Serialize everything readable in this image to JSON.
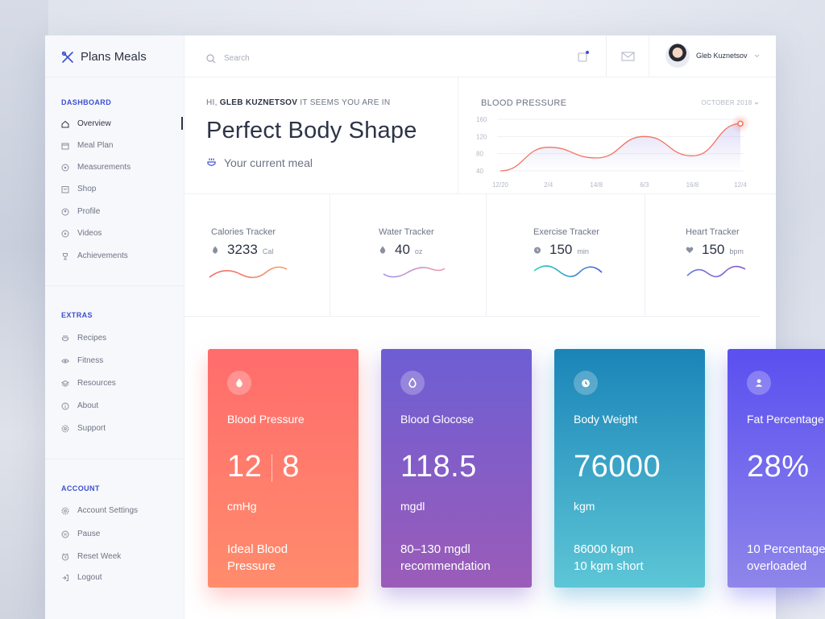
{
  "brand": {
    "name": "Plans Meals"
  },
  "sidebar": {
    "dashboard_title": "DASHBOARD",
    "dashboard_items": [
      {
        "label": "Overview",
        "icon": "home-icon"
      },
      {
        "label": "Meal Plan",
        "icon": "calendar-icon"
      },
      {
        "label": "Measurements",
        "icon": "target-icon"
      },
      {
        "label": "Shop",
        "icon": "shop-icon"
      },
      {
        "label": "Profile",
        "icon": "user-icon"
      },
      {
        "label": "Videos",
        "icon": "play-icon"
      },
      {
        "label": "Achievements",
        "icon": "trophy-icon"
      }
    ],
    "extras_title": "EXTRAS",
    "extras_items": [
      {
        "label": "Recipes",
        "icon": "cup-icon"
      },
      {
        "label": "Fitness",
        "icon": "eye-icon"
      },
      {
        "label": "Resources",
        "icon": "layers-icon"
      },
      {
        "label": "About",
        "icon": "info-icon"
      },
      {
        "label": "Support",
        "icon": "gear-icon"
      }
    ],
    "account_title": "ACCOUNT",
    "account_items": [
      {
        "label": "Account Settings",
        "icon": "settings-icon"
      },
      {
        "label": "Pause",
        "icon": "pause-icon"
      },
      {
        "label": "Reset Week",
        "icon": "clock-icon"
      },
      {
        "label": "Logout",
        "icon": "logout-icon"
      }
    ]
  },
  "topbar": {
    "search_placeholder": "Search",
    "user_name": "Gleb Kuznetsov"
  },
  "hero": {
    "greet_prefix": "HI,",
    "greet_name": "GLEB KUZNETSOV",
    "greet_suffix": "IT SEEMS YOU ARE IN",
    "headline": "Perfect Body Shape",
    "meal_label": "Your current meal"
  },
  "chart_data": {
    "type": "line",
    "title": "BLOOD PRESSURE",
    "period": "OCTOBER 2018",
    "x": [
      "12/20",
      "2/4",
      "14/8",
      "6/3",
      "16/8",
      "12/4"
    ],
    "yticks": [
      160,
      120,
      80,
      40
    ],
    "ylim": [
      40,
      160
    ],
    "series": [
      {
        "values": [
          40,
          95,
          70,
          120,
          75,
          150
        ]
      }
    ],
    "colors": {
      "line": "#f2735e",
      "area": "#a9a2e8"
    }
  },
  "trackers": [
    {
      "title": "Calories Tracker",
      "value": "3233",
      "unit": "Cal",
      "icon": "flame-icon",
      "c1": "#f46b6b",
      "c2": "#f59a6a"
    },
    {
      "title": "Water Tracker",
      "value": "40",
      "unit": "oz",
      "icon": "drop-icon",
      "c1": "#9b8df0",
      "c2": "#f49ab0"
    },
    {
      "title": "Exercise Tracker",
      "value": "150",
      "unit": "min",
      "icon": "stopwatch-icon",
      "c1": "#2fd3c0",
      "c2": "#4b5fd8"
    },
    {
      "title": "Heart Tracker",
      "value": "150",
      "unit": "bpm",
      "icon": "heart-icon",
      "c1": "#6b7ae0",
      "c2": "#8b56c9"
    }
  ],
  "cards": [
    {
      "title": "Blood Pressure",
      "value_a": "12",
      "value_b": "8",
      "unit": "cmHg",
      "note": "Ideal Blood Pressure",
      "icon": "drop-icon"
    },
    {
      "title": "Blood Glocose",
      "value": "118.5",
      "unit": "mgdl",
      "note": "80–130 mgdl recommendation",
      "icon": "drop-icon"
    },
    {
      "title": "Body Weight",
      "value": "76000",
      "unit": "kgm",
      "note_line1": "86000 kgm",
      "note_line2": "10 kgm short",
      "icon": "stopwatch-icon"
    },
    {
      "title": "Fat Percentage",
      "value": "28%",
      "unit": "",
      "note": "10 Percentage overloaded",
      "icon": "user-icon"
    }
  ]
}
